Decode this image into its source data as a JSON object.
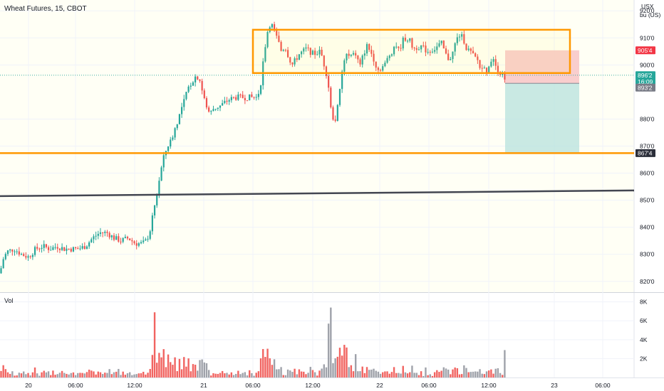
{
  "header": {
    "title": "Wheat Futures, 15, CBOT",
    "currency": "USX",
    "unit": "bu (US)"
  },
  "volume": {
    "label": "Vol",
    "ticks": [
      "8K",
      "6K",
      "4K",
      "2K"
    ],
    "tick_values": [
      8000,
      6000,
      4000,
      2000
    ]
  },
  "price_tags": {
    "target": {
      "text": "905'4",
      "color": "#f23645"
    },
    "last": {
      "text": "896'2",
      "countdown": "16:09",
      "color": "#26a69a"
    },
    "entry": {
      "text": "893'2",
      "color": "#787b86"
    },
    "stop": {
      "text": "867'4",
      "color": "#ff9800"
    }
  },
  "chart_data": {
    "type": "candlestick",
    "instrument": "Wheat Futures",
    "timeframe": "15",
    "exchange": "CBOT",
    "y_axis": {
      "labels": [
        "920'0",
        "910'0",
        "900'0",
        "880'0",
        "870'0",
        "860'0",
        "850'0",
        "840'0",
        "830'0",
        "820'0"
      ],
      "values": [
        920,
        910,
        900,
        880,
        870,
        860,
        850,
        840,
        830,
        820
      ],
      "range": [
        816,
        924
      ]
    },
    "x_axis": {
      "labels": [
        "20",
        "06:00",
        "12:00",
        "21",
        "06:00",
        "12:00",
        "22",
        "06:00",
        "12:00",
        "23",
        "06:00"
      ]
    },
    "price_path": [
      [
        0,
        823
      ],
      [
        4,
        828
      ],
      [
        10,
        831
      ],
      [
        20,
        832
      ],
      [
        30,
        830
      ],
      [
        40,
        829
      ],
      [
        50,
        832
      ],
      [
        60,
        833
      ],
      [
        70,
        832
      ],
      [
        80,
        833
      ],
      [
        90,
        832
      ],
      [
        100,
        832
      ],
      [
        110,
        832
      ],
      [
        120,
        833
      ],
      [
        130,
        836
      ],
      [
        140,
        838
      ],
      [
        150,
        838
      ],
      [
        160,
        836
      ],
      [
        170,
        835
      ],
      [
        180,
        836
      ],
      [
        190,
        834
      ],
      [
        200,
        834
      ],
      [
        205,
        835
      ],
      [
        210,
        838
      ],
      [
        215,
        845
      ],
      [
        220,
        852
      ],
      [
        225,
        860
      ],
      [
        230,
        866
      ],
      [
        235,
        870
      ],
      [
        240,
        872
      ],
      [
        245,
        876
      ],
      [
        250,
        880
      ],
      [
        255,
        884
      ],
      [
        260,
        888
      ],
      [
        265,
        892
      ],
      [
        270,
        894
      ],
      [
        275,
        896
      ],
      [
        280,
        895
      ],
      [
        285,
        889
      ],
      [
        290,
        884
      ],
      [
        295,
        882
      ],
      [
        300,
        884
      ],
      [
        310,
        885
      ],
      [
        320,
        887
      ],
      [
        330,
        888
      ],
      [
        340,
        888
      ],
      [
        350,
        888
      ],
      [
        360,
        888
      ],
      [
        365,
        891
      ],
      [
        370,
        903
      ],
      [
        375,
        912
      ],
      [
        380,
        916
      ],
      [
        385,
        912
      ],
      [
        390,
        909
      ],
      [
        395,
        905
      ],
      [
        400,
        907
      ],
      [
        405,
        903
      ],
      [
        410,
        900
      ],
      [
        420,
        904
      ],
      [
        430,
        906
      ],
      [
        440,
        904
      ],
      [
        450,
        905
      ],
      [
        455,
        900
      ],
      [
        460,
        895
      ],
      [
        465,
        882
      ],
      [
        470,
        879
      ],
      [
        475,
        886
      ],
      [
        480,
        897
      ],
      [
        485,
        904
      ],
      [
        490,
        903
      ],
      [
        500,
        904
      ],
      [
        505,
        899
      ],
      [
        510,
        904
      ],
      [
        515,
        907
      ],
      [
        520,
        905
      ],
      [
        525,
        902
      ],
      [
        530,
        898
      ],
      [
        540,
        900
      ],
      [
        545,
        903
      ],
      [
        550,
        905
      ],
      [
        555,
        908
      ],
      [
        560,
        905
      ],
      [
        565,
        909
      ],
      [
        570,
        910
      ],
      [
        575,
        909
      ],
      [
        580,
        906
      ],
      [
        590,
        907
      ],
      [
        600,
        905
      ],
      [
        610,
        906
      ],
      [
        620,
        908
      ],
      [
        625,
        904
      ],
      [
        630,
        902
      ],
      [
        635,
        904
      ],
      [
        640,
        909
      ],
      [
        645,
        911
      ],
      [
        650,
        910
      ],
      [
        655,
        906
      ],
      [
        660,
        905
      ],
      [
        665,
        903
      ],
      [
        670,
        902
      ],
      [
        675,
        898
      ],
      [
        680,
        900
      ],
      [
        685,
        897
      ],
      [
        690,
        903
      ],
      [
        695,
        900
      ],
      [
        700,
        898
      ],
      [
        705,
        896
      ],
      [
        708,
        894
      ]
    ],
    "annotations": {
      "range_box": {
        "high": 913,
        "low": 897,
        "color": "#ff9800"
      },
      "support_line": {
        "price": 867.4,
        "color": "#ff9800"
      },
      "trend_line": {
        "start_price": 851.5,
        "end_price": 853.6,
        "color": "#434651"
      },
      "long_position": {
        "entry": 893.2,
        "stop": 867.4,
        "target": 905.4,
        "profit_color": "#b2dfdb",
        "loss_color": "#f8c6c6"
      }
    }
  }
}
